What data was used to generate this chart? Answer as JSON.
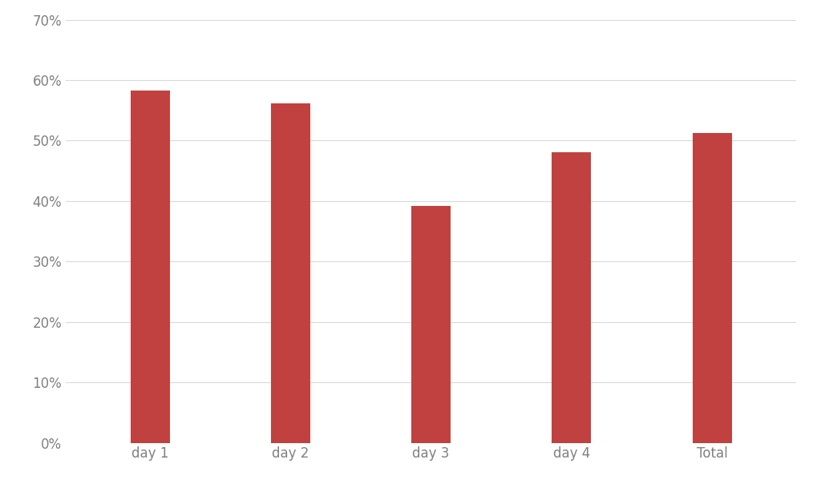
{
  "categories": [
    "day 1",
    "day 2",
    "day 3",
    "day 4",
    "Total"
  ],
  "values": [
    0.583,
    0.562,
    0.392,
    0.481,
    0.513
  ],
  "bar_color": "#c0413f",
  "background_color": "#ffffff",
  "ylim": [
    0,
    0.7
  ],
  "yticks": [
    0.0,
    0.1,
    0.2,
    0.3,
    0.4,
    0.5,
    0.6,
    0.7
  ],
  "ytick_labels": [
    "0%",
    "10%",
    "20%",
    "30%",
    "40%",
    "50%",
    "60%",
    "70%"
  ],
  "grid_color": "#d9d9d9",
  "tick_label_color": "#808080",
  "bar_width": 0.28
}
